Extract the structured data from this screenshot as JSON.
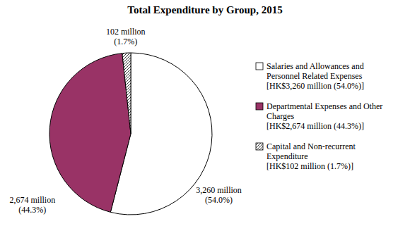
{
  "chart_data": {
    "type": "pie",
    "title": "Total Expenditure by Group, 2015",
    "categories": [
      "Salaries and Allowances and Personnel Related Expenses [HK$3,260 million (54.0%)]",
      "Departmental Expenses and Other Charges [HK$2,674 million (44.3%)]",
      "Capital and Non-recurrent Expenditure [HK$102 million (1.7%)]"
    ],
    "values": [
      3260,
      2674,
      102
    ],
    "value_labels": [
      "3,260 million (54.0%)",
      "2,674 million (44.3%)",
      "102 million (1.7%)"
    ],
    "colors": [
      "#ffffff",
      "#993366",
      "#000000"
    ],
    "data_labels": true,
    "legend": "right"
  }
}
